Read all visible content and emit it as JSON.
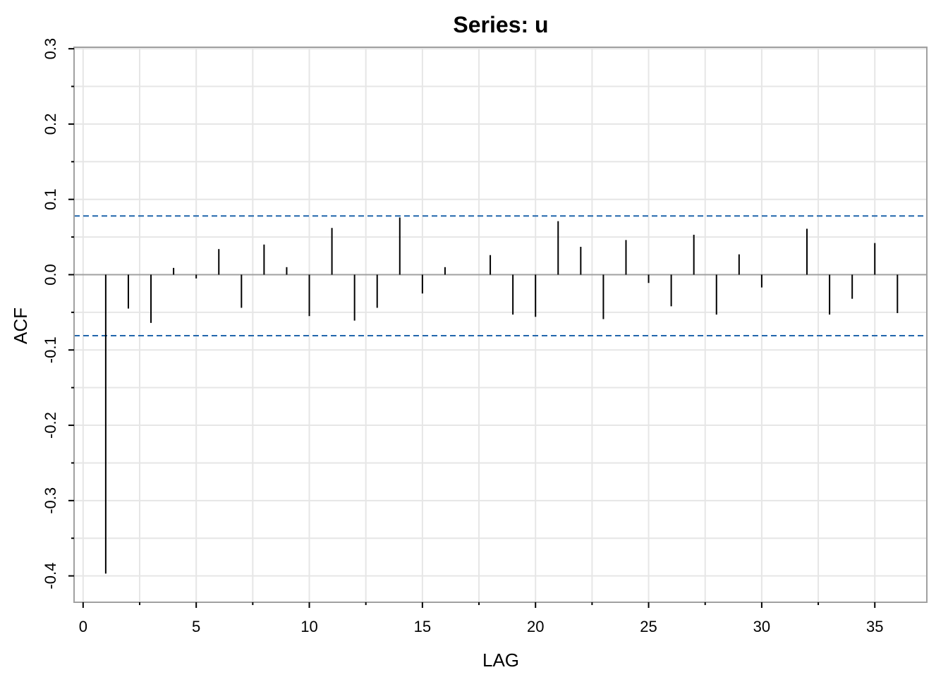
{
  "chart_data": {
    "type": "bar",
    "title": "Series:  u",
    "xlabel": "LAG",
    "ylabel": "ACF",
    "xlim": [
      -0.4,
      37.3
    ],
    "ylim": [
      -0.435,
      0.302
    ],
    "x_ticks": [
      0,
      5,
      10,
      15,
      20,
      25,
      30,
      35
    ],
    "x_tick_labels": [
      "0",
      "5",
      "10",
      "15",
      "20",
      "25",
      "30",
      "35"
    ],
    "x_minor_ticks": [
      2.5,
      7.5,
      12.5,
      17.5,
      22.5,
      27.5,
      32.5
    ],
    "y_ticks": [
      -0.4,
      -0.3,
      -0.2,
      -0.1,
      0.0,
      0.1,
      0.2,
      0.3
    ],
    "y_tick_labels": [
      "-0.4",
      "-0.3",
      "-0.2",
      "-0.1",
      "0.0",
      "0.1",
      "0.2",
      "0.3"
    ],
    "grid": true,
    "confidence_bounds": [
      0.078,
      -0.081
    ],
    "zero_line": 0,
    "lags": [
      1,
      2,
      3,
      4,
      5,
      6,
      7,
      8,
      9,
      10,
      11,
      12,
      13,
      14,
      15,
      16,
      17,
      18,
      19,
      20,
      21,
      22,
      23,
      24,
      25,
      26,
      27,
      28,
      29,
      30,
      31,
      32,
      33,
      34,
      35,
      36
    ],
    "values": [
      -0.397,
      -0.045,
      -0.064,
      0.009,
      -0.005,
      0.034,
      -0.044,
      0.04,
      0.01,
      -0.055,
      0.062,
      -0.061,
      -0.044,
      0.076,
      -0.025,
      0.01,
      0.0,
      0.026,
      -0.053,
      -0.056,
      0.071,
      0.037,
      -0.059,
      0.046,
      -0.011,
      -0.042,
      0.053,
      -0.053,
      0.027,
      -0.017,
      0.0,
      0.061,
      -0.053,
      -0.032,
      0.042,
      -0.051
    ],
    "colors": {
      "bars": "#000000",
      "bounds": "#2166ac",
      "grid": "#e6e6e6",
      "frame": "#a0a0a0",
      "zero_line": "#a0a0a0"
    }
  }
}
